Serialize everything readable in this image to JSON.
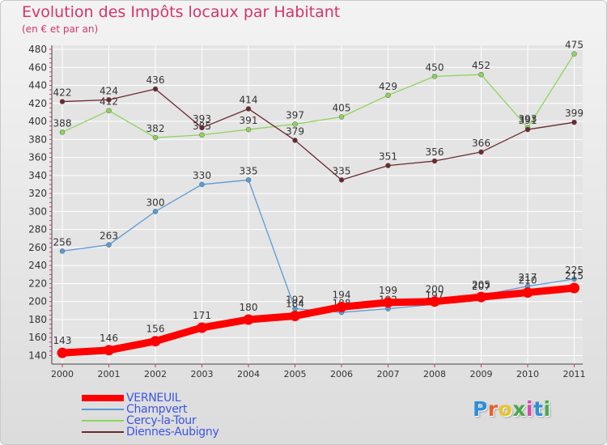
{
  "header": {
    "title": "Evolution des Impôts locaux par Habitant",
    "subtitle": "(en € et par an)"
  },
  "colors": {
    "title": "#d6336c",
    "axis_text": "#333333",
    "grid": "#ffffff",
    "legend_text": "#3b55e6"
  },
  "chart_data": {
    "type": "line",
    "title": "Evolution des Impôts locaux par Habitant",
    "subtitle": "(en € et par an)",
    "xlabel": "",
    "ylabel": "",
    "categories": [
      "2000",
      "2001",
      "2002",
      "2003",
      "2004",
      "2005",
      "2006",
      "2007",
      "2008",
      "2009",
      "2010",
      "2011"
    ],
    "ylim": [
      130,
      480
    ],
    "yticks": [
      140,
      160,
      180,
      200,
      220,
      240,
      260,
      280,
      300,
      320,
      340,
      360,
      380,
      400,
      420,
      440,
      460,
      480
    ],
    "grid": true,
    "legend_position": "bottom-left",
    "series": [
      {
        "name": "Champvert",
        "color": "#5b9bd5",
        "values": [
          256,
          263,
          300,
          330,
          335,
          192,
          188,
          192,
          197,
          207,
          217,
          225
        ],
        "labels": [
          "256",
          "263",
          "300",
          "330",
          "335",
          "192",
          "188",
          "192",
          "197",
          "207",
          "217",
          "225"
        ]
      },
      {
        "name": "Cercy-la-Tour",
        "color": "#8ed45a",
        "values": [
          388,
          412,
          382,
          385,
          391,
          397,
          405,
          429,
          450,
          452,
          393,
          475
        ],
        "labels": [
          "388",
          "412",
          "382",
          "385",
          "391",
          "397",
          "405",
          "429",
          "450",
          "452",
          "393",
          "475"
        ]
      },
      {
        "name": "Diennes-Aubigny",
        "color": "#6b2a2f",
        "values": [
          422,
          424,
          436,
          393,
          414,
          379,
          335,
          351,
          356,
          366,
          391,
          399
        ],
        "labels": [
          "422",
          "424",
          "436",
          "393",
          "414",
          "379",
          "335",
          "351",
          "356",
          "366",
          "391",
          "399"
        ]
      },
      {
        "name": "VERNEUIL",
        "color": "#ff0000",
        "values": [
          143,
          146,
          156,
          171,
          180,
          184,
          194,
          199,
          200,
          205,
          210,
          215
        ],
        "labels": [
          "143",
          "146",
          "156",
          "171",
          "180",
          "184",
          "194",
          "199",
          "200",
          "205",
          "210",
          "215"
        ]
      }
    ]
  },
  "legend": {
    "items": [
      {
        "label": "VERNEUIL",
        "color": "#ff0000",
        "thickness": 8
      },
      {
        "label": "Champvert",
        "color": "#5b9bd5",
        "thickness": 2
      },
      {
        "label": "Cercy-la-Tour",
        "color": "#8ed45a",
        "thickness": 2
      },
      {
        "label": "Diennes-Aubigny",
        "color": "#6b2a2f",
        "thickness": 2
      }
    ]
  },
  "logo": {
    "text": "Proxiti",
    "letter_colors": [
      "#2f8fd8",
      "#e8602c",
      "#e8c32c",
      "#4aa84a",
      "#d64aa8",
      "#2f8fd8",
      "#4aa84a"
    ]
  }
}
